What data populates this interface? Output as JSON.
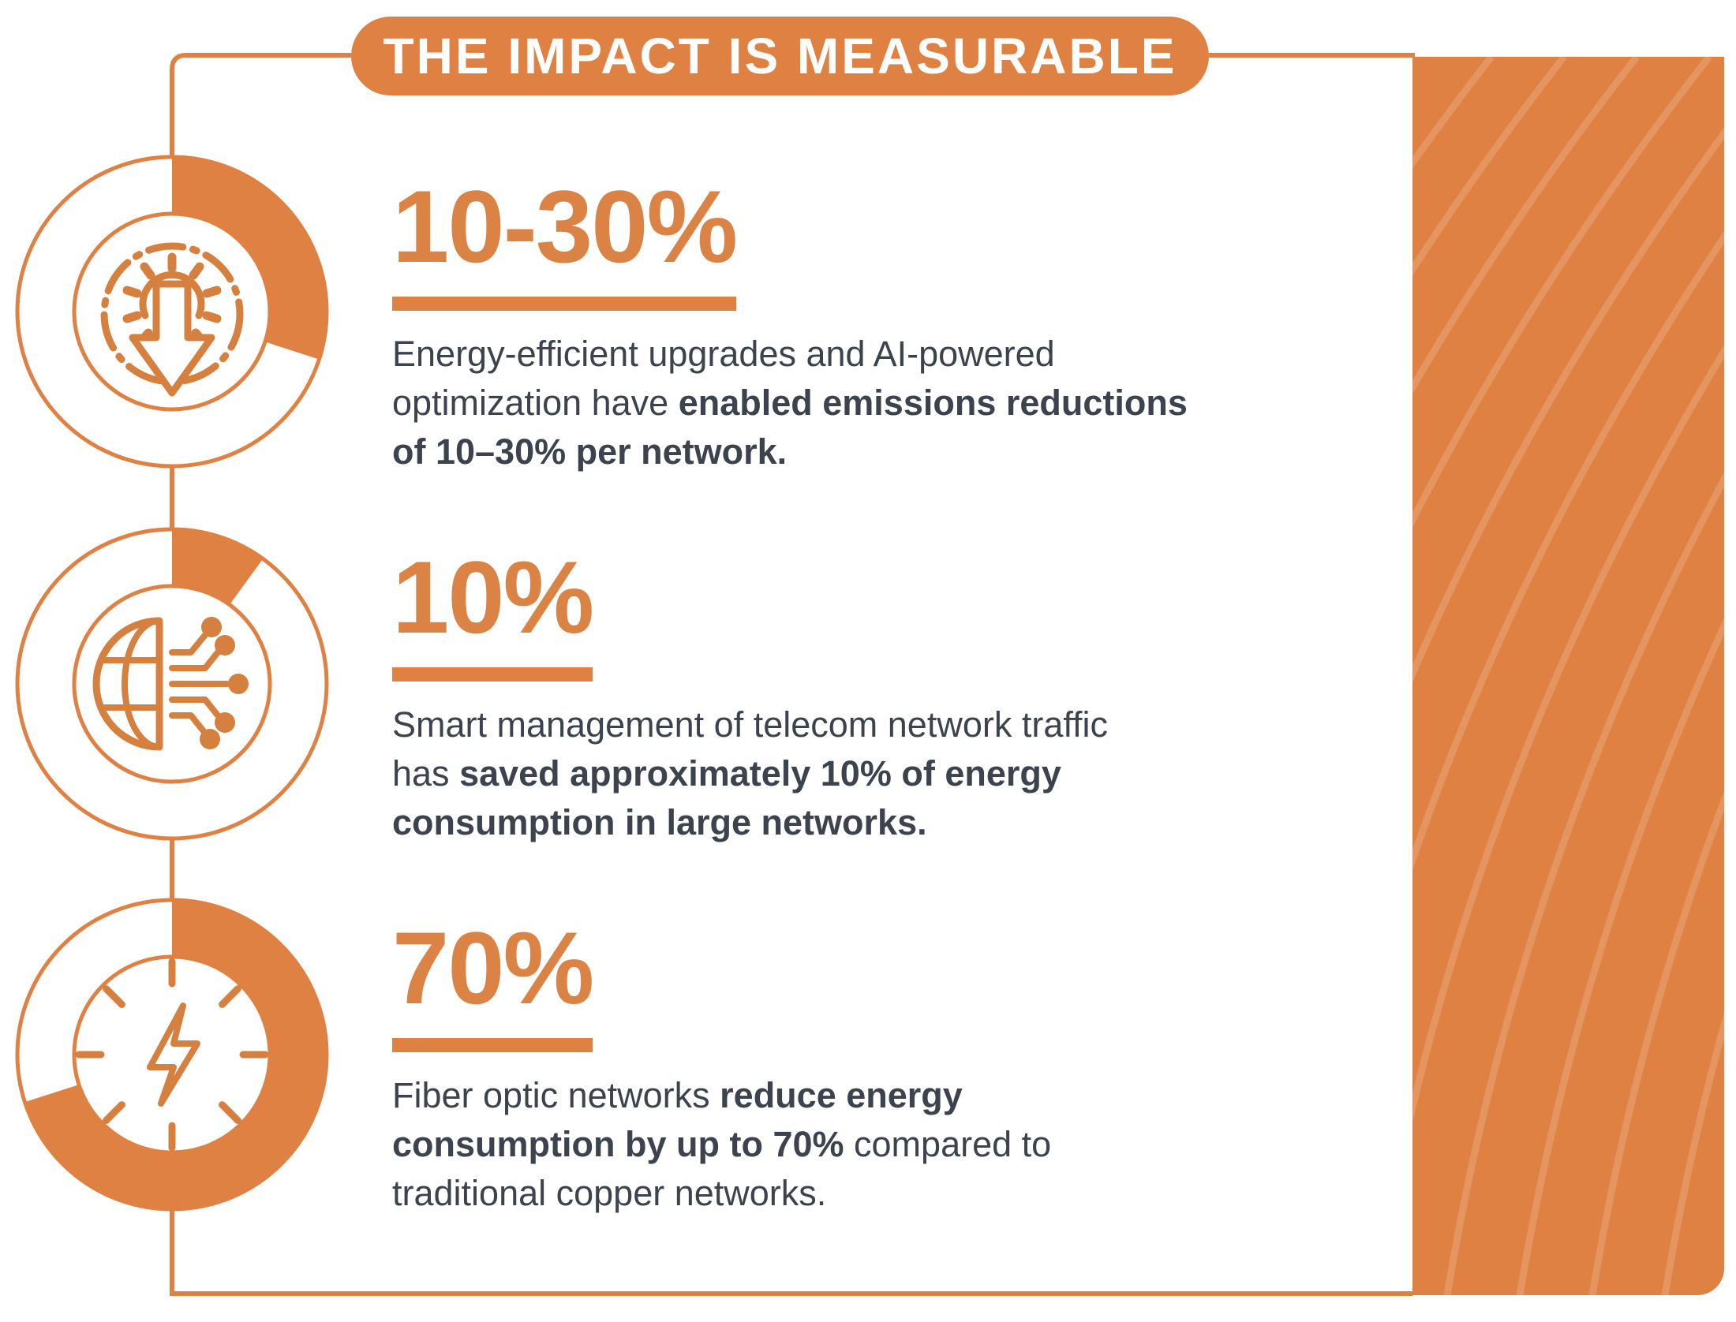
{
  "title": {
    "text": "THE IMPACT IS MEASURABLE"
  },
  "colors": {
    "brand_orange": "#DF8142",
    "stat_orange": "#DB8345",
    "icon_orange": "#D5803F",
    "text_dark": "#3C434C",
    "background": "#FFFFFF"
  },
  "sections": [
    {
      "id": "emissions",
      "icon": "gear-down-arrow-icon",
      "percent": 30,
      "stat": "10-30%",
      "para": [
        "Energy-efficient upgrades and AI-powered\noptimization have ",
        "enabled emissions reductions\nof 10–30% per network.",
        ""
      ]
    },
    {
      "id": "network-traffic",
      "icon": "globe-circuit-icon",
      "percent": 10,
      "stat": "10%",
      "para": [
        "Smart management of telecom network traffic\nhas ",
        "saved approximately 10% of energy\nconsumption in large networks.",
        ""
      ]
    },
    {
      "id": "fiber-optic",
      "icon": "bolt-burst-icon",
      "percent": 70,
      "stat": "70%",
      "para": [
        "Fiber optic networks ",
        "reduce energy\nconsumption by up to 70%",
        " compared to\ntraditional copper networks."
      ]
    }
  ]
}
